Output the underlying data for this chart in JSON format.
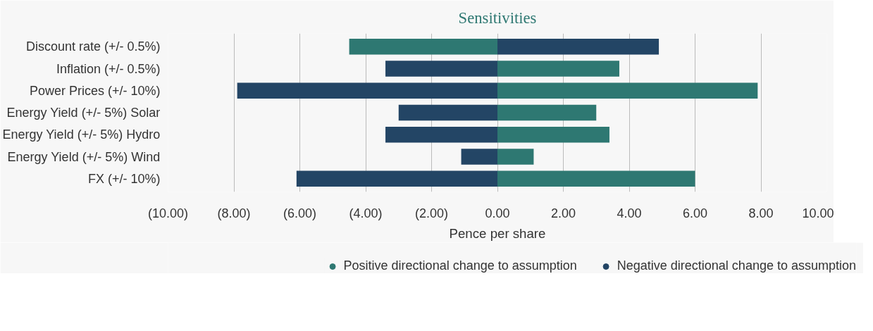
{
  "chart_data": {
    "type": "bar",
    "orientation": "horizontal",
    "title": "Sensitivities",
    "xlabel": "Pence per share",
    "categories": [
      "Discount rate (+/- 0.5%)",
      "Inflation (+/- 0.5%)",
      "Power Prices (+/- 10%)",
      "Energy Yield (+/- 5%) Solar",
      "Energy Yield (+/- 5%) Hydro",
      "Energy Yield (+/- 5%) Wind",
      "FX (+/- 10%)"
    ],
    "series": [
      {
        "name": "Positive directional change to assumption",
        "color": "#2e7872",
        "values": [
          -4.5,
          3.7,
          7.9,
          3.0,
          3.4,
          1.1,
          6.0
        ]
      },
      {
        "name": "Negative directional change to assumption",
        "color": "#234565",
        "values": [
          4.9,
          -3.4,
          -7.9,
          -3.0,
          -3.4,
          -1.1,
          -6.1
        ]
      }
    ],
    "xlim": [
      -10,
      10
    ],
    "xticks": [
      {
        "value": -10,
        "label": "(10.00)"
      },
      {
        "value": -8,
        "label": "(8.00)"
      },
      {
        "value": -6,
        "label": "(6.00)"
      },
      {
        "value": -4,
        "label": "(4.00)"
      },
      {
        "value": -2,
        "label": "(2.00)"
      },
      {
        "value": 0,
        "label": "0.00"
      },
      {
        "value": 2,
        "label": "2.00"
      },
      {
        "value": 4,
        "label": "4.00"
      },
      {
        "value": 6,
        "label": "6.00"
      },
      {
        "value": 8,
        "label": "8.00"
      },
      {
        "value": 10,
        "label": "10.00"
      }
    ],
    "stacked": true,
    "grid": "x",
    "legend": "bottom"
  }
}
